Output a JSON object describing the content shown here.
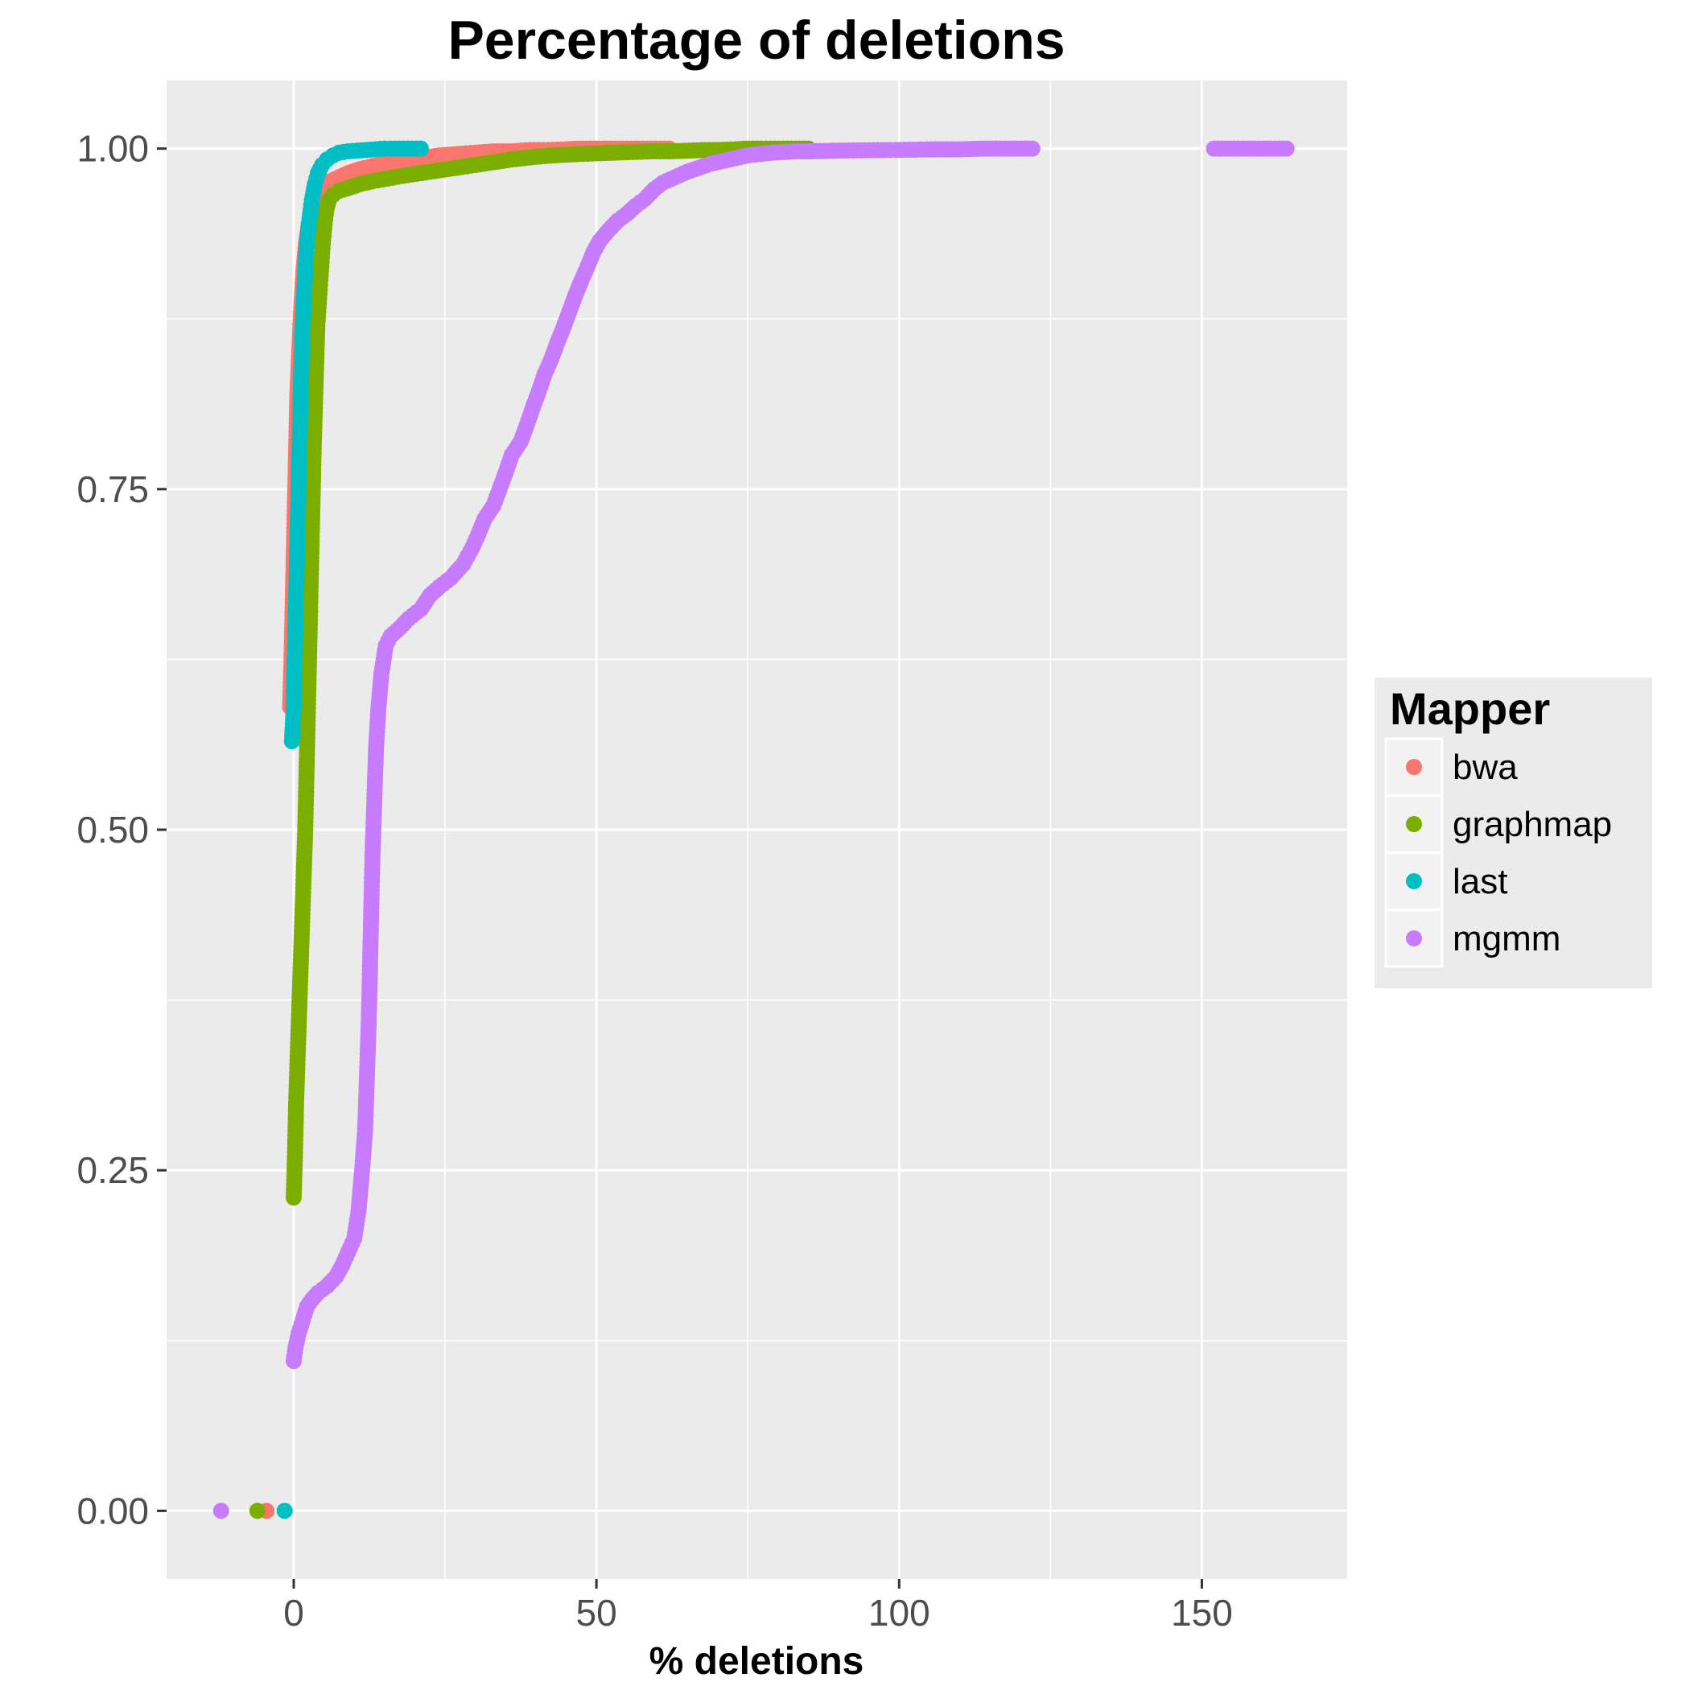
{
  "chart_data": {
    "type": "scatter",
    "title": "Percentage of deletions",
    "xlabel": "% deletions",
    "ylabel": "",
    "xlim": [
      -21,
      174
    ],
    "ylim": [
      -0.05,
      1.05
    ],
    "x_ticks": [
      0,
      50,
      100,
      150
    ],
    "x_tick_labels": [
      "0",
      "50",
      "100",
      "150"
    ],
    "y_ticks": [
      0,
      0.25,
      0.5,
      0.75,
      1.0
    ],
    "y_tick_labels": [
      "0.00",
      "0.25",
      "0.50",
      "0.75",
      "1.00"
    ],
    "grid": true,
    "legend": {
      "title": "Mapper",
      "position": "right"
    },
    "series": [
      {
        "name": "bwa",
        "color": "#F8766D",
        "points": [
          [
            -4.5,
            0.0
          ],
          [
            -0.6,
            0.59
          ],
          [
            -0.4,
            0.62
          ],
          [
            -0.2,
            0.66
          ],
          [
            0.0,
            0.7
          ],
          [
            0.2,
            0.74
          ],
          [
            0.4,
            0.78
          ],
          [
            0.6,
            0.82
          ],
          [
            0.9,
            0.85
          ],
          [
            1.2,
            0.88
          ],
          [
            1.6,
            0.91
          ],
          [
            2.0,
            0.93
          ],
          [
            2.5,
            0.945
          ],
          [
            3.0,
            0.955
          ],
          [
            3.5,
            0.963
          ],
          [
            4.2,
            0.968
          ],
          [
            5.0,
            0.972
          ],
          [
            6.0,
            0.976
          ],
          [
            7.5,
            0.979
          ],
          [
            9.0,
            0.982
          ],
          [
            11.0,
            0.985
          ],
          [
            13.0,
            0.987
          ],
          [
            15.0,
            0.989
          ],
          [
            18.0,
            0.991
          ],
          [
            21.0,
            0.993
          ],
          [
            24.0,
            0.995
          ],
          [
            27.0,
            0.996
          ],
          [
            30.0,
            0.997
          ],
          [
            33.0,
            0.998
          ],
          [
            36.0,
            0.998
          ],
          [
            39.0,
            0.999
          ],
          [
            42.0,
            0.999
          ],
          [
            45.0,
            0.9995
          ],
          [
            47.0,
            1.0
          ],
          [
            57.0,
            1.0
          ],
          [
            62.0,
            1.0
          ]
        ]
      },
      {
        "name": "graphmap",
        "color": "#7CAE00",
        "points": [
          [
            -6.0,
            0.0
          ],
          [
            0.0,
            0.23
          ],
          [
            0.2,
            0.26
          ],
          [
            0.4,
            0.3
          ],
          [
            0.7,
            0.34
          ],
          [
            1.0,
            0.38
          ],
          [
            1.3,
            0.42
          ],
          [
            1.6,
            0.46
          ],
          [
            1.9,
            0.5
          ],
          [
            2.1,
            0.54
          ],
          [
            2.3,
            0.58
          ],
          [
            2.5,
            0.62
          ],
          [
            2.7,
            0.66
          ],
          [
            2.9,
            0.7
          ],
          [
            3.1,
            0.74
          ],
          [
            3.3,
            0.78
          ],
          [
            3.5,
            0.81
          ],
          [
            3.7,
            0.84
          ],
          [
            3.9,
            0.87
          ],
          [
            4.2,
            0.89
          ],
          [
            4.5,
            0.91
          ],
          [
            4.8,
            0.93
          ],
          [
            5.1,
            0.945
          ],
          [
            5.4,
            0.955
          ],
          [
            5.8,
            0.962
          ],
          [
            6.5,
            0.966
          ],
          [
            7.5,
            0.969
          ],
          [
            9.0,
            0.971
          ],
          [
            11.0,
            0.974
          ],
          [
            13.0,
            0.976
          ],
          [
            15.5,
            0.978
          ],
          [
            18.0,
            0.98
          ],
          [
            21.0,
            0.982
          ],
          [
            24.0,
            0.984
          ],
          [
            27.0,
            0.986
          ],
          [
            30.0,
            0.988
          ],
          [
            33.0,
            0.99
          ],
          [
            36.0,
            0.992
          ],
          [
            40.0,
            0.994
          ],
          [
            43.0,
            0.995
          ],
          [
            47.0,
            0.996
          ],
          [
            50.0,
            0.9965
          ],
          [
            53.0,
            0.997
          ],
          [
            56.0,
            0.9975
          ],
          [
            59.0,
            0.998
          ],
          [
            62.0,
            0.998
          ],
          [
            68.0,
            0.999
          ],
          [
            70.0,
            0.999
          ],
          [
            73.0,
            0.9995
          ],
          [
            75.0,
            1.0
          ],
          [
            78.0,
            1.0
          ],
          [
            85.0,
            1.0
          ]
        ]
      },
      {
        "name": "last",
        "color": "#00BFC4",
        "points": [
          [
            -1.5,
            0.0
          ],
          [
            -0.3,
            0.565
          ],
          [
            0.0,
            0.59
          ],
          [
            0.2,
            0.63
          ],
          [
            0.4,
            0.67
          ],
          [
            0.6,
            0.71
          ],
          [
            0.8,
            0.75
          ],
          [
            1.0,
            0.79
          ],
          [
            1.2,
            0.83
          ],
          [
            1.5,
            0.87
          ],
          [
            1.8,
            0.9
          ],
          [
            2.1,
            0.925
          ],
          [
            2.5,
            0.945
          ],
          [
            3.0,
            0.962
          ],
          [
            3.5,
            0.974
          ],
          [
            4.0,
            0.982
          ],
          [
            4.7,
            0.988
          ],
          [
            5.5,
            0.992
          ],
          [
            6.5,
            0.995
          ],
          [
            7.5,
            0.997
          ],
          [
            9.0,
            0.998
          ],
          [
            10.5,
            0.9985
          ],
          [
            12.0,
            0.999
          ],
          [
            13.5,
            0.9995
          ],
          [
            15.0,
            1.0
          ],
          [
            16.0,
            1.0
          ],
          [
            19.5,
            1.0
          ],
          [
            21.0,
            1.0
          ]
        ]
      },
      {
        "name": "mgmm",
        "color": "#C77CFF",
        "points": [
          [
            -12.0,
            0.0
          ],
          [
            0.0,
            0.11
          ],
          [
            0.3,
            0.12
          ],
          [
            0.8,
            0.13
          ],
          [
            1.5,
            0.14
          ],
          [
            2.2,
            0.15
          ],
          [
            3.0,
            0.155
          ],
          [
            4.0,
            0.16
          ],
          [
            5.5,
            0.165
          ],
          [
            7.0,
            0.172
          ],
          [
            8.0,
            0.18
          ],
          [
            9.0,
            0.19
          ],
          [
            10.0,
            0.2
          ],
          [
            10.7,
            0.22
          ],
          [
            11.3,
            0.25
          ],
          [
            11.8,
            0.28
          ],
          [
            12.1,
            0.32
          ],
          [
            12.4,
            0.36
          ],
          [
            12.6,
            0.4
          ],
          [
            12.8,
            0.44
          ],
          [
            13.0,
            0.48
          ],
          [
            13.3,
            0.52
          ],
          [
            13.6,
            0.56
          ],
          [
            14.0,
            0.59
          ],
          [
            14.5,
            0.615
          ],
          [
            15.2,
            0.635
          ],
          [
            16.0,
            0.642
          ],
          [
            17.5,
            0.648
          ],
          [
            19.0,
            0.655
          ],
          [
            21.0,
            0.662
          ],
          [
            22.5,
            0.672
          ],
          [
            24.0,
            0.678
          ],
          [
            26.0,
            0.685
          ],
          [
            28.0,
            0.695
          ],
          [
            29.5,
            0.707
          ],
          [
            30.5,
            0.717
          ],
          [
            31.5,
            0.728
          ],
          [
            33.0,
            0.738
          ],
          [
            34.0,
            0.75
          ],
          [
            35.0,
            0.762
          ],
          [
            36.0,
            0.775
          ],
          [
            37.5,
            0.785
          ],
          [
            38.5,
            0.797
          ],
          [
            39.5,
            0.81
          ],
          [
            40.5,
            0.822
          ],
          [
            41.5,
            0.835
          ],
          [
            42.5,
            0.845
          ],
          [
            43.5,
            0.857
          ],
          [
            44.5,
            0.868
          ],
          [
            45.5,
            0.88
          ],
          [
            46.5,
            0.892
          ],
          [
            47.5,
            0.903
          ],
          [
            48.5,
            0.913
          ],
          [
            49.5,
            0.924
          ],
          [
            50.5,
            0.932
          ],
          [
            52.0,
            0.94
          ],
          [
            53.5,
            0.947
          ],
          [
            55.0,
            0.952
          ],
          [
            56.5,
            0.958
          ],
          [
            58.0,
            0.963
          ],
          [
            59.5,
            0.97
          ],
          [
            61.0,
            0.975
          ],
          [
            63.0,
            0.979
          ],
          [
            65.0,
            0.983
          ],
          [
            67.0,
            0.986
          ],
          [
            69.0,
            0.989
          ],
          [
            71.0,
            0.991
          ],
          [
            73.0,
            0.993
          ],
          [
            75.0,
            0.995
          ],
          [
            77.0,
            0.996
          ],
          [
            79.0,
            0.997
          ],
          [
            83.0,
            0.998
          ],
          [
            85.0,
            0.998
          ],
          [
            89.0,
            0.9985
          ],
          [
            98.5,
            0.999
          ],
          [
            99.5,
            0.999
          ],
          [
            106.0,
            0.9995
          ],
          [
            110.0,
            0.9995
          ],
          [
            114.0,
            1.0
          ],
          [
            122.0,
            1.0
          ],
          [
            152.0,
            1.0
          ],
          [
            164.0,
            1.0
          ]
        ]
      }
    ]
  }
}
